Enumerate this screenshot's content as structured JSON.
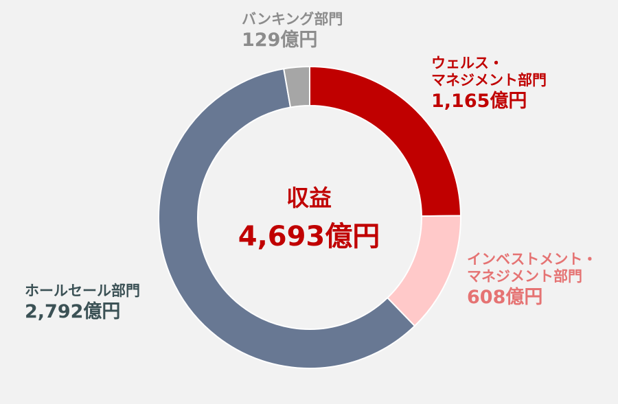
{
  "chart_data": {
    "type": "pie",
    "style": "donut",
    "title": "収益",
    "total": 4693,
    "total_label": "4,693億円",
    "unit": "億円",
    "slices": [
      {
        "name": "ウェルス・マネジメント部門",
        "name_lines": [
          "ウェルス・",
          "マネジメント部門"
        ],
        "value": 1165,
        "value_label": "1,165億円",
        "color": "#c00000",
        "label_color": "#c00000"
      },
      {
        "name": "インベストメント・マネジメント部門",
        "name_lines": [
          "インベストメント・",
          "マネジメント部門"
        ],
        "value": 608,
        "value_label": "608億円",
        "color": "#ffc9c9",
        "label_color": "#e57373"
      },
      {
        "name": "ホールセール部門",
        "name_lines": [
          "ホールセール部門"
        ],
        "value": 2792,
        "value_label": "2,792億円",
        "color": "#687893",
        "label_color": "#3b5155"
      },
      {
        "name": "バンキング部門",
        "name_lines": [
          "バンキング部門"
        ],
        "value": 129,
        "value_label": "129億円",
        "color": "#a6a6a6",
        "label_color": "#8c8c8c"
      }
    ]
  }
}
